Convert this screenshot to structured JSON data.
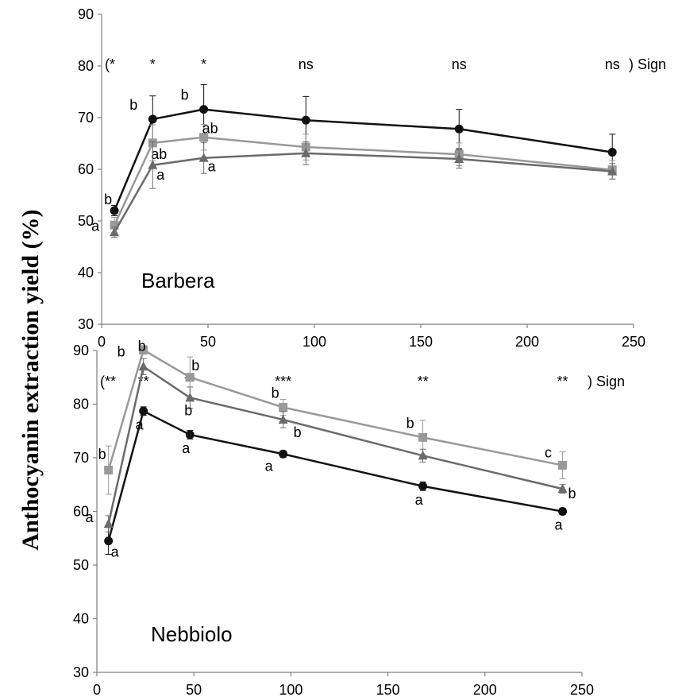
{
  "ylabel": "Anthocyanin extraction yield (%)",
  "chart_data": [
    {
      "type": "line",
      "label": "Barbera",
      "x": [
        6,
        24,
        48,
        96,
        168,
        240
      ],
      "xlim": [
        0,
        250
      ],
      "xticks": [
        "0",
        "50",
        "100",
        "150",
        "200",
        "250"
      ],
      "ylim": [
        30,
        90
      ],
      "yticks": [
        "30",
        "40",
        "50",
        "60",
        "70",
        "80",
        "90"
      ],
      "significance": [
        "(*",
        "*",
        "*",
        "ns",
        "ns",
        "ns"
      ],
      "sign_label": ") Sign",
      "series": [
        {
          "color": "#111111",
          "marker": "circle",
          "values": [
            52,
            69.7,
            71.6,
            69.5,
            67.8,
            63.3
          ],
          "errors": [
            1,
            4.5,
            4.8,
            4.6,
            3.8,
            3.5
          ],
          "letters": [
            "b",
            "b",
            "b",
            "",
            "",
            ""
          ]
        },
        {
          "color": "#999999",
          "marker": "square",
          "values": [
            49.2,
            65.1,
            66.2,
            64.3,
            62.9,
            59.9
          ],
          "errors": [
            1.5,
            3.5,
            2.5,
            2.5,
            2.2,
            1.8
          ],
          "letters": [
            "",
            "ab",
            "ab",
            "",
            "",
            ""
          ]
        },
        {
          "color": "#6b6b6b",
          "marker": "triangle",
          "values": [
            47.8,
            60.8,
            62.2,
            63.1,
            62,
            59.6
          ],
          "errors": [
            1,
            4.5,
            3,
            2.2,
            1.8,
            1.5
          ],
          "letters": [
            "a",
            "a",
            "a",
            "",
            "",
            ""
          ]
        }
      ]
    },
    {
      "type": "line",
      "label": "Nebbiolo",
      "x": [
        6,
        24,
        48,
        96,
        168,
        240
      ],
      "xlim": [
        0,
        250
      ],
      "xticks": [
        "0",
        "50",
        "100",
        "150",
        "200",
        "250"
      ],
      "ylim": [
        30,
        90
      ],
      "yticks": [
        "30",
        "40",
        "50",
        "60",
        "70",
        "80",
        "90"
      ],
      "significance": [
        "(**",
        "**",
        "**",
        "***",
        "**",
        "**"
      ],
      "sign_label": ") Sign",
      "series": [
        {
          "color": "#111111",
          "marker": "circle",
          "values": [
            54.5,
            78.7,
            74.3,
            70.7,
            64.7,
            60
          ],
          "errors": [
            2.5,
            0.8,
            0.8,
            0.6,
            0.8,
            0.6
          ],
          "letters": [
            "a",
            "a",
            "a",
            "a",
            "a",
            "a"
          ]
        },
        {
          "color": "#999999",
          "marker": "square",
          "values": [
            67.7,
            90.1,
            85,
            79.4,
            73.8,
            68.6
          ],
          "errors": [
            4.5,
            0.8,
            3.8,
            1.5,
            3.2,
            2.5
          ],
          "letters": [
            "b",
            "b",
            "b",
            "b",
            "b",
            "c"
          ]
        },
        {
          "color": "#6b6b6b",
          "marker": "triangle",
          "values": [
            57.7,
            87,
            81.2,
            77.1,
            70.4,
            64.2
          ],
          "errors": [
            1.5,
            1.5,
            2,
            1.5,
            1.2,
            0.8
          ],
          "letters": [
            "a",
            "b",
            "b",
            "b",
            "",
            "b"
          ]
        }
      ]
    }
  ]
}
